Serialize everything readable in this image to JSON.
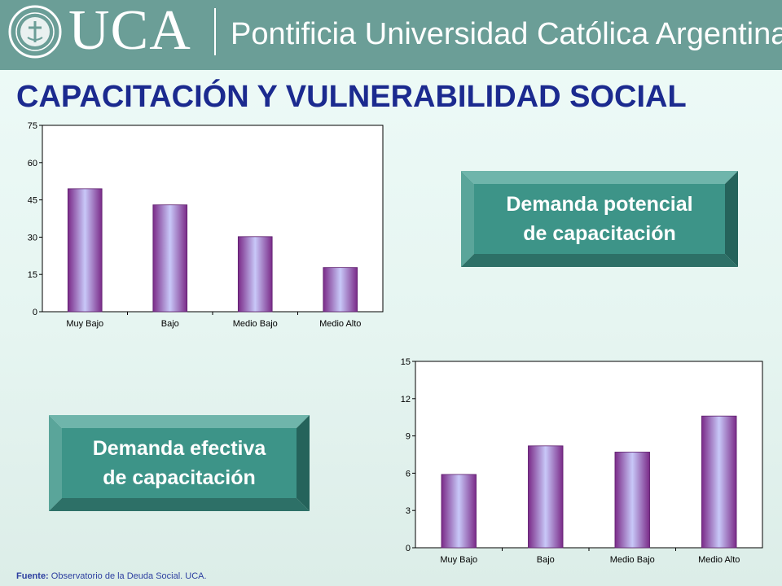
{
  "header": {
    "logo_text": "UCA",
    "university_name": "Pontificia Universidad Católica Argentina"
  },
  "title": "CAPACITACIÓN Y VULNERABILIDAD SOCIAL",
  "boxes": {
    "potencial": {
      "line1": "Demanda potencial",
      "line2": "de capacitación"
    },
    "efectiva": {
      "line1": "Demanda efectiva",
      "line2": "de capacitación"
    }
  },
  "footer": {
    "source_label": "Fuente:",
    "source_text": "Observatorio de la Deuda Social. UCA."
  },
  "colors": {
    "header": "#6b9e97",
    "title": "#1b2a8f",
    "box": "#3d9488",
    "bar_edge": "#7a2a88",
    "bar_center": "#c8c8f8"
  },
  "chart_data": [
    {
      "type": "bar",
      "categories": [
        "Muy Bajo",
        "Bajo",
        "Medio Bajo",
        "Medio Alto"
      ],
      "values": [
        49.5,
        43,
        30.2,
        17.8
      ],
      "ylim": [
        0,
        75
      ],
      "yticks": [
        0,
        15,
        30,
        45,
        60,
        75
      ],
      "grid": false,
      "legend": "none"
    },
    {
      "type": "bar",
      "categories": [
        "Muy Bajo",
        "Bajo",
        "Medio Bajo",
        "Medio Alto"
      ],
      "values": [
        5.9,
        8.2,
        7.7,
        10.6
      ],
      "ylim": [
        0,
        15
      ],
      "yticks": [
        0,
        3,
        6,
        9,
        12,
        15
      ],
      "grid": false,
      "legend": "none"
    }
  ]
}
